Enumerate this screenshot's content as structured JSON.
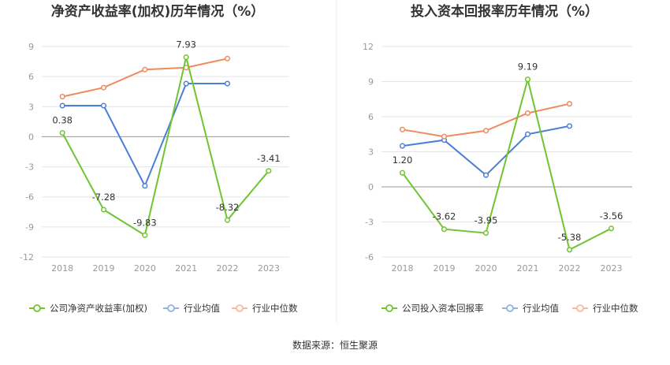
{
  "source_label": "数据来源：恒生聚源",
  "colors": {
    "company": "#6fc530",
    "avg": "#4a7fd6",
    "median": "#f08a5d"
  },
  "chart_data": [
    {
      "type": "line",
      "title": "净资产收益率(加权)历年情况（%）",
      "x": [
        "2018",
        "2019",
        "2020",
        "2021",
        "2022",
        "2023"
      ],
      "ylim": [
        -12,
        9
      ],
      "yticks": [
        9,
        6,
        3,
        0,
        -3,
        -6,
        -9,
        -12
      ],
      "grid": true,
      "legend_position": "bottom",
      "series": [
        {
          "key": "company",
          "name": "公司净资产收益率(加权)",
          "values": [
            0.38,
            -7.28,
            -9.83,
            7.93,
            -8.32,
            -3.41
          ],
          "labels": [
            "0.38",
            "-7.28",
            "-9.83",
            "7.93",
            "-8.32",
            "-3.41"
          ]
        },
        {
          "key": "avg",
          "name": "行业均值",
          "values": [
            3.1,
            3.1,
            -4.9,
            5.3,
            5.3,
            null
          ]
        },
        {
          "key": "median",
          "name": "行业中位数",
          "values": [
            4.0,
            4.9,
            6.7,
            6.9,
            7.8,
            null
          ]
        }
      ]
    },
    {
      "type": "line",
      "title": "投入资本回报率历年情况（%）",
      "x": [
        "2018",
        "2019",
        "2020",
        "2021",
        "2022",
        "2023"
      ],
      "ylim": [
        -6,
        12
      ],
      "yticks": [
        12,
        9,
        6,
        3,
        0,
        -3,
        -6
      ],
      "grid": true,
      "legend_position": "bottom",
      "series": [
        {
          "key": "company",
          "name": "公司投入资本回报率",
          "values": [
            1.2,
            -3.62,
            -3.95,
            9.19,
            -5.38,
            -3.56
          ],
          "labels": [
            "1.20",
            "-3.62",
            "-3.95",
            "9.19",
            "-5.38",
            "-3.56"
          ]
        },
        {
          "key": "avg",
          "name": "行业均值",
          "values": [
            3.5,
            4.0,
            1.0,
            4.5,
            5.2,
            null
          ]
        },
        {
          "key": "median",
          "name": "行业中位数",
          "values": [
            4.9,
            4.3,
            4.8,
            6.3,
            7.1,
            null
          ]
        }
      ]
    }
  ]
}
